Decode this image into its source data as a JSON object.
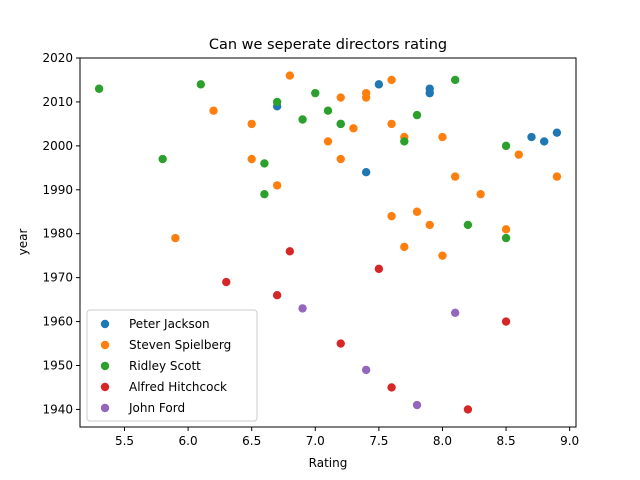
{
  "chart_data": {
    "type": "scatter",
    "title": "Can we seperate directors rating",
    "xlabel": "Rating",
    "ylabel": "year",
    "xlim": [
      5.15,
      9.05
    ],
    "ylim": [
      1936,
      2020
    ],
    "xticks": [
      "5.5",
      "6.0",
      "6.5",
      "7.0",
      "7.5",
      "8.0",
      "8.5",
      "9.0"
    ],
    "yticks": [
      "1940",
      "1950",
      "1960",
      "1970",
      "1980",
      "1990",
      "2000",
      "2010",
      "2020"
    ],
    "grid": false,
    "legend_position": "lower-left",
    "series": [
      {
        "name": "Peter Jackson",
        "color": "#1f77b4",
        "points": [
          [
            6.7,
            2009
          ],
          [
            7.2,
            2005
          ],
          [
            7.4,
            1994
          ],
          [
            7.5,
            2014
          ],
          [
            7.9,
            2013
          ],
          [
            7.9,
            2012
          ],
          [
            8.7,
            2002
          ],
          [
            8.8,
            2001
          ],
          [
            8.9,
            2003
          ]
        ]
      },
      {
        "name": "Steven Spielberg",
        "color": "#ff7f0e",
        "points": [
          [
            5.9,
            1979
          ],
          [
            6.2,
            2008
          ],
          [
            6.5,
            2005
          ],
          [
            6.5,
            1997
          ],
          [
            6.7,
            1991
          ],
          [
            6.8,
            2016
          ],
          [
            7.1,
            2001
          ],
          [
            7.2,
            2011
          ],
          [
            7.2,
            1997
          ],
          [
            7.3,
            2004
          ],
          [
            7.4,
            2012
          ],
          [
            7.4,
            2011
          ],
          [
            7.6,
            2015
          ],
          [
            7.6,
            2005
          ],
          [
            7.6,
            1984
          ],
          [
            7.7,
            2002
          ],
          [
            7.7,
            1977
          ],
          [
            7.8,
            1985
          ],
          [
            7.9,
            1982
          ],
          [
            8.0,
            2002
          ],
          [
            8.0,
            1975
          ],
          [
            8.1,
            1993
          ],
          [
            8.3,
            1989
          ],
          [
            8.5,
            1981
          ],
          [
            8.6,
            1998
          ],
          [
            8.9,
            1993
          ]
        ]
      },
      {
        "name": "Ridley Scott",
        "color": "#2ca02c",
        "points": [
          [
            5.3,
            2013
          ],
          [
            5.8,
            1997
          ],
          [
            6.1,
            2014
          ],
          [
            6.6,
            1996
          ],
          [
            6.6,
            1989
          ],
          [
            6.7,
            2010
          ],
          [
            6.9,
            2006
          ],
          [
            7.0,
            2012
          ],
          [
            7.1,
            2008
          ],
          [
            7.2,
            2005
          ],
          [
            7.7,
            2001
          ],
          [
            7.8,
            2007
          ],
          [
            8.1,
            2015
          ],
          [
            8.2,
            1982
          ],
          [
            8.5,
            2000
          ],
          [
            8.5,
            1979
          ]
        ]
      },
      {
        "name": "Alfred Hitchcock",
        "color": "#d62728",
        "points": [
          [
            6.3,
            1969
          ],
          [
            6.7,
            1966
          ],
          [
            6.8,
            1976
          ],
          [
            7.2,
            1955
          ],
          [
            7.5,
            1972
          ],
          [
            7.6,
            1945
          ],
          [
            8.2,
            1940
          ],
          [
            8.5,
            1960
          ]
        ]
      },
      {
        "name": "John Ford",
        "color": "#9467bd",
        "points": [
          [
            6.9,
            1963
          ],
          [
            7.4,
            1949
          ],
          [
            7.8,
            1941
          ],
          [
            8.1,
            1962
          ]
        ]
      }
    ]
  }
}
